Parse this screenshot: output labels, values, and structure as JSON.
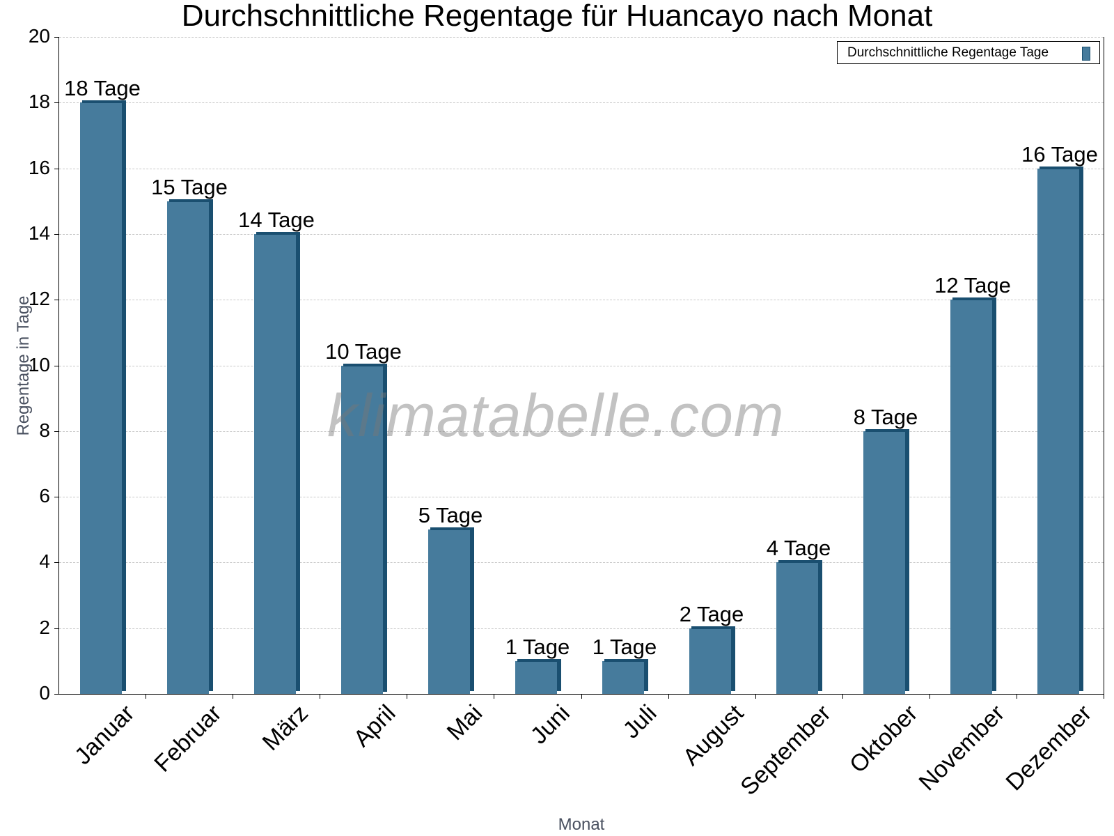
{
  "chart_data": {
    "type": "bar",
    "title": "Durchschnittliche Regentage für Huancayo nach Monat",
    "xlabel": "Monat",
    "ylabel": "Regentage in Tage",
    "categories": [
      "Januar",
      "Februar",
      "März",
      "April",
      "Mai",
      "Juni",
      "Juli",
      "August",
      "September",
      "Oktober",
      "November",
      "Dezember"
    ],
    "series": [
      {
        "name": "Durchschnittliche Regentage Tage",
        "values": [
          18,
          15,
          14,
          10,
          5,
          1,
          1,
          2,
          4,
          8,
          12,
          16
        ],
        "color": "#467b9c"
      }
    ],
    "data_labels": [
      "18 Tage",
      "15 Tage",
      "14 Tage",
      "10 Tage",
      "5 Tage",
      "1 Tage",
      "1 Tage",
      "2 Tage",
      "4 Tage",
      "8 Tage",
      "12 Tage",
      "16 Tage"
    ],
    "ylim": [
      0,
      20
    ],
    "yticks": [
      0,
      2,
      4,
      6,
      8,
      10,
      12,
      14,
      16,
      18,
      20
    ],
    "grid": true,
    "legend_position": "top-right",
    "watermark": "klimatabelle.com"
  },
  "colors": {
    "bar_face": "#467b9c",
    "bar_shade": "#1a4f70",
    "axis_title": "#4a5160",
    "grid": "#c8c8c8"
  }
}
